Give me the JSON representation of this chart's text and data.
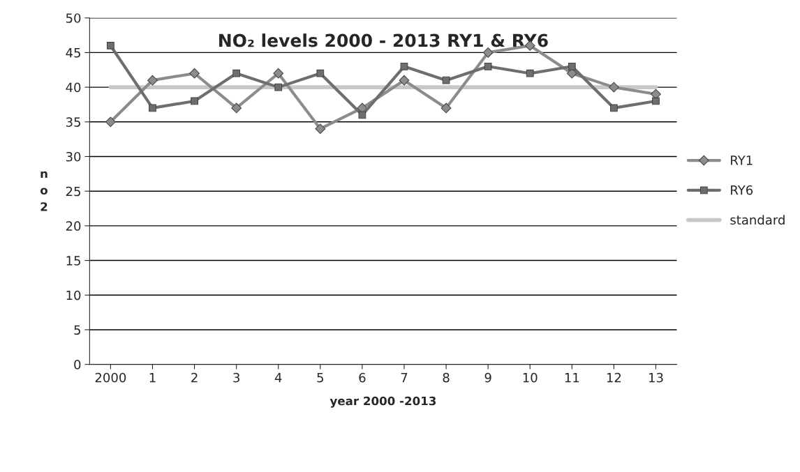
{
  "chart_data": {
    "type": "line",
    "title": "NO₂ levels 2000 - 2013 RY1 & RY6",
    "xlabel": "year 2000 -2013",
    "ylabel": "no2",
    "categories": [
      "2000",
      "1",
      "2",
      "3",
      "4",
      "5",
      "6",
      "7",
      "8",
      "9",
      "10",
      "11",
      "12",
      "13"
    ],
    "series": [
      {
        "name": "RY1",
        "color": "#8c8c8c",
        "marker": "diamond",
        "values": [
          35,
          41,
          42,
          37,
          42,
          34,
          37,
          41,
          37,
          45,
          46,
          42,
          40,
          39
        ]
      },
      {
        "name": "RY6",
        "color": "#6e6e6e",
        "marker": "square",
        "values": [
          46,
          37,
          38,
          42,
          40,
          42,
          36,
          43,
          41,
          43,
          42,
          43,
          37,
          38
        ]
      },
      {
        "name": "standard",
        "color": "#c8c8c8",
        "marker": "none",
        "values": [
          40,
          40,
          40,
          40,
          40,
          40,
          40,
          40,
          40,
          40,
          40,
          40,
          40,
          40
        ]
      }
    ],
    "ylim": [
      0,
      50
    ],
    "yticks": [
      0,
      5,
      10,
      15,
      20,
      25,
      30,
      35,
      40,
      45,
      50
    ],
    "grid": "y",
    "legend": "right"
  }
}
